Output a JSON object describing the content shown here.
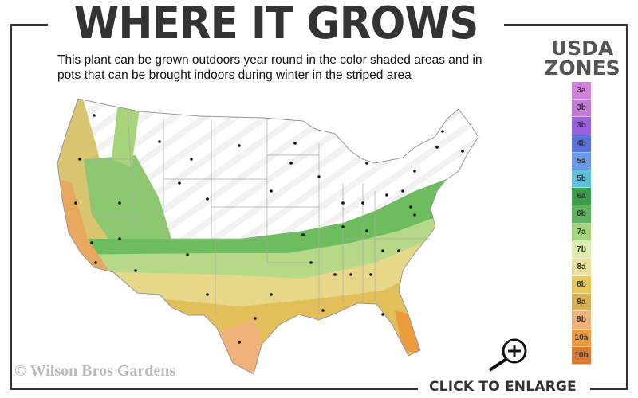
{
  "header": {
    "title": "WHERE IT GROWS",
    "subtitle": "This plant can be grown outdoors year round in the color shaded areas and in pots that can be brought indoors during winter in the striped area"
  },
  "legend": {
    "title_line1": "USDA",
    "title_line2": "ZONES",
    "zones": [
      {
        "label": "3a",
        "color": "#d47fdc"
      },
      {
        "label": "3b",
        "color": "#c27ad8"
      },
      {
        "label": "3b",
        "color": "#9a5fe0"
      },
      {
        "label": "4b",
        "color": "#5a72dc"
      },
      {
        "label": "5a",
        "color": "#6a98ea"
      },
      {
        "label": "5b",
        "color": "#5ec2dc"
      },
      {
        "label": "6a",
        "color": "#3a9e4a"
      },
      {
        "label": "6b",
        "color": "#5cb55a"
      },
      {
        "label": "7a",
        "color": "#a6d47a"
      },
      {
        "label": "7b",
        "color": "#dcebae"
      },
      {
        "label": "8a",
        "color": "#ebe09e"
      },
      {
        "label": "8b",
        "color": "#e8c95a"
      },
      {
        "label": "9a",
        "color": "#d9b054"
      },
      {
        "label": "9b",
        "color": "#f0b27a"
      },
      {
        "label": "10a",
        "color": "#eb9a3c"
      },
      {
        "label": "10b",
        "color": "#de7a30"
      }
    ]
  },
  "footer": {
    "copyright": "© Wilson Bros Gardens",
    "enlarge": "CLICK TO ENLARGE"
  },
  "icons": {
    "zoom": "magnifier-plus-icon"
  }
}
